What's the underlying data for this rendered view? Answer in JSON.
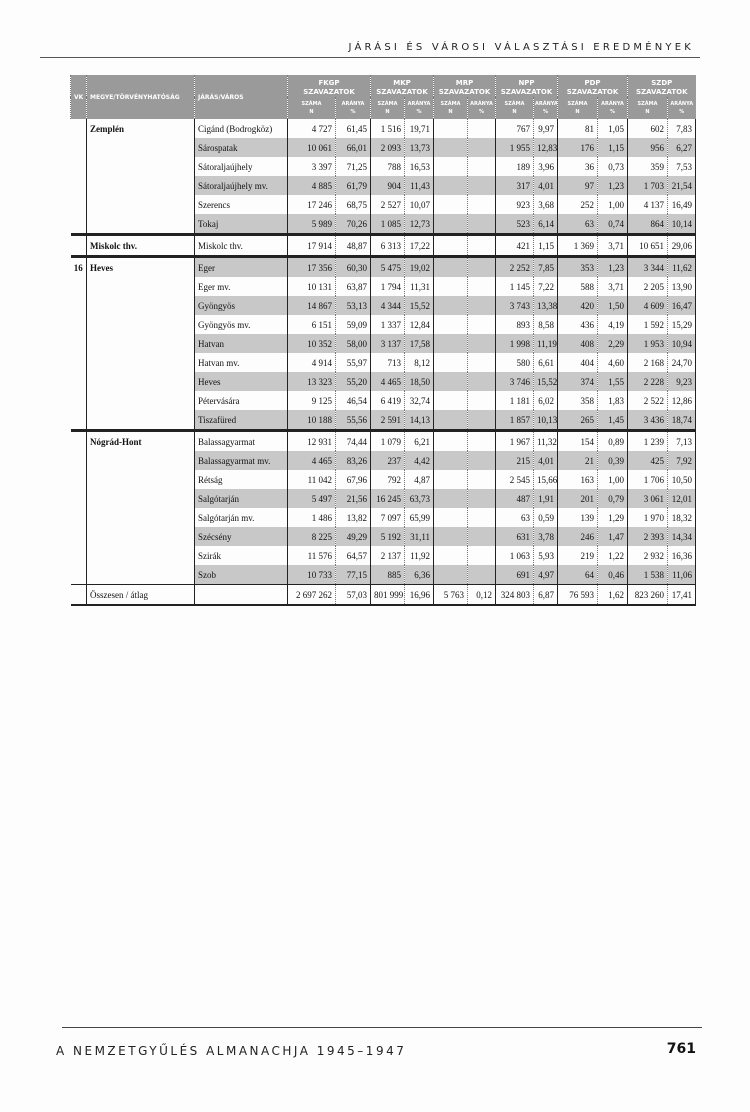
{
  "running_head": "JÁRÁSI ÉS VÁROSI VÁLASZTÁSI EREDMÉNYEK",
  "footer": {
    "title": "A NEMZETGYŰLÉS ALMANACHJA 1945–1947",
    "page_number": "761"
  },
  "table": {
    "headers": {
      "vk": "VK",
      "megye": "MEGYE/TÖRVÉNYHATÓSÁG",
      "jaras": "JÁRÁS/VÁROS",
      "parties": [
        "FKGP",
        "MKP",
        "MRP",
        "NPP",
        "PDP",
        "SZDP"
      ],
      "votes": "SZAVAZATOK",
      "n_label": "SZÁMA",
      "n_unit": "N",
      "pct_label": "ARÁNYA",
      "pct_unit": "%"
    },
    "rows": [
      {
        "vk": "",
        "megye": "Zemplén",
        "jaras": "Cigánd (Bodrogköz)",
        "shaded": false,
        "v": [
          "4 727",
          "61,45",
          "1 516",
          "19,71",
          "",
          "",
          "767",
          "9,97",
          "81",
          "1,05",
          "602",
          "7,83"
        ]
      },
      {
        "vk": "",
        "megye": "",
        "jaras": "Sárospatak",
        "shaded": true,
        "v": [
          "10 061",
          "66,01",
          "2 093",
          "13,73",
          "",
          "",
          "1 955",
          "12,83",
          "176",
          "1,15",
          "956",
          "6,27"
        ]
      },
      {
        "vk": "",
        "megye": "",
        "jaras": "Sátoraljaújhely",
        "shaded": false,
        "v": [
          "3 397",
          "71,25",
          "788",
          "16,53",
          "",
          "",
          "189",
          "3,96",
          "36",
          "0,73",
          "359",
          "7,53"
        ]
      },
      {
        "vk": "",
        "megye": "",
        "jaras": "Sátoraljaújhely mv.",
        "shaded": true,
        "v": [
          "4 885",
          "61,79",
          "904",
          "11,43",
          "",
          "",
          "317",
          "4,01",
          "97",
          "1,23",
          "1 703",
          "21,54"
        ]
      },
      {
        "vk": "",
        "megye": "",
        "jaras": "Szerencs",
        "shaded": false,
        "v": [
          "17 246",
          "68,75",
          "2 527",
          "10,07",
          "",
          "",
          "923",
          "3,68",
          "252",
          "1,00",
          "4 137",
          "16,49"
        ]
      },
      {
        "vk": "",
        "megye": "",
        "jaras": "Tokaj",
        "shaded": true,
        "v": [
          "5 989",
          "70,26",
          "1 085",
          "12,73",
          "",
          "",
          "523",
          "6,14",
          "63",
          "0,74",
          "864",
          "10,14"
        ]
      },
      {
        "vk": "",
        "megye": "Miskolc thv.",
        "jaras": "Miskolc thv.",
        "shaded": false,
        "end": true,
        "v": [
          "17 914",
          "48,87",
          "6 313",
          "17,22",
          "",
          "",
          "421",
          "1,15",
          "1 369",
          "3,71",
          "10 651",
          "29,06"
        ]
      },
      {
        "vk": "16",
        "megye": "Heves",
        "jaras": "Eger",
        "shaded": true,
        "v": [
          "17 356",
          "60,30",
          "5 475",
          "19,02",
          "",
          "",
          "2 252",
          "7,85",
          "353",
          "1,23",
          "3 344",
          "11,62"
        ]
      },
      {
        "vk": "",
        "megye": "",
        "jaras": "Eger mv.",
        "shaded": false,
        "v": [
          "10 131",
          "63,87",
          "1 794",
          "11,31",
          "",
          "",
          "1 145",
          "7,22",
          "588",
          "3,71",
          "2 205",
          "13,90"
        ]
      },
      {
        "vk": "",
        "megye": "",
        "jaras": "Gyöngyös",
        "shaded": true,
        "v": [
          "14 867",
          "53,13",
          "4 344",
          "15,52",
          "",
          "",
          "3 743",
          "13,38",
          "420",
          "1,50",
          "4 609",
          "16,47"
        ]
      },
      {
        "vk": "",
        "megye": "",
        "jaras": "Gyöngyös mv.",
        "shaded": false,
        "v": [
          "6 151",
          "59,09",
          "1 337",
          "12,84",
          "",
          "",
          "893",
          "8,58",
          "436",
          "4,19",
          "1 592",
          "15,29"
        ]
      },
      {
        "vk": "",
        "megye": "",
        "jaras": "Hatvan",
        "shaded": true,
        "v": [
          "10 352",
          "58,00",
          "3 137",
          "17,58",
          "",
          "",
          "1 998",
          "11,19",
          "408",
          "2,29",
          "1 953",
          "10,94"
        ]
      },
      {
        "vk": "",
        "megye": "",
        "jaras": "Hatvan mv.",
        "shaded": false,
        "v": [
          "4 914",
          "55,97",
          "713",
          "8,12",
          "",
          "",
          "580",
          "6,61",
          "404",
          "4,60",
          "2 168",
          "24,70"
        ]
      },
      {
        "vk": "",
        "megye": "",
        "jaras": "Heves",
        "shaded": true,
        "v": [
          "13 323",
          "55,20",
          "4 465",
          "18,50",
          "",
          "",
          "3 746",
          "15,52",
          "374",
          "1,55",
          "2 228",
          "9,23"
        ]
      },
      {
        "vk": "",
        "megye": "",
        "jaras": "Pétervására",
        "shaded": false,
        "v": [
          "9 125",
          "46,54",
          "6 419",
          "32,74",
          "",
          "",
          "1 181",
          "6,02",
          "358",
          "1,83",
          "2 522",
          "12,86"
        ]
      },
      {
        "vk": "",
        "megye": "",
        "jaras": "Tiszafüred",
        "shaded": true,
        "v": [
          "10 188",
          "55,56",
          "2 591",
          "14,13",
          "",
          "",
          "1 857",
          "10,13",
          "265",
          "1,45",
          "3 436",
          "18,74"
        ]
      },
      {
        "vk": "",
        "megye": "Nógrád-Hont",
        "jaras": "Balassagyarmat",
        "shaded": false,
        "v": [
          "12 931",
          "74,44",
          "1 079",
          "6,21",
          "",
          "",
          "1 967",
          "11,32",
          "154",
          "0,89",
          "1 239",
          "7,13"
        ]
      },
      {
        "vk": "",
        "megye": "",
        "jaras": "Balassagyarmat mv.",
        "shaded": true,
        "v": [
          "4 465",
          "83,26",
          "237",
          "4,42",
          "",
          "",
          "215",
          "4,01",
          "21",
          "0,39",
          "425",
          "7,92"
        ]
      },
      {
        "vk": "",
        "megye": "",
        "jaras": "Rétság",
        "shaded": false,
        "v": [
          "11 042",
          "67,96",
          "792",
          "4,87",
          "",
          "",
          "2 545",
          "15,66",
          "163",
          "1,00",
          "1 706",
          "10,50"
        ]
      },
      {
        "vk": "",
        "megye": "",
        "jaras": "Salgótarján",
        "shaded": true,
        "v": [
          "5 497",
          "21,56",
          "16 245",
          "63,73",
          "",
          "",
          "487",
          "1,91",
          "201",
          "0,79",
          "3 061",
          "12,01"
        ]
      },
      {
        "vk": "",
        "megye": "",
        "jaras": "Salgótarján mv.",
        "shaded": false,
        "v": [
          "1 486",
          "13,82",
          "7 097",
          "65,99",
          "",
          "",
          "63",
          "0,59",
          "139",
          "1,29",
          "1 970",
          "18,32"
        ]
      },
      {
        "vk": "",
        "megye": "",
        "jaras": "Szécsény",
        "shaded": true,
        "v": [
          "8 225",
          "49,29",
          "5 192",
          "31,11",
          "",
          "",
          "631",
          "3,78",
          "246",
          "1,47",
          "2 393",
          "14,34"
        ]
      },
      {
        "vk": "",
        "megye": "",
        "jaras": "Szirák",
        "shaded": false,
        "v": [
          "11 576",
          "64,57",
          "2 137",
          "11,92",
          "",
          "",
          "1 063",
          "5,93",
          "219",
          "1,22",
          "2 932",
          "16,36"
        ]
      },
      {
        "vk": "",
        "megye": "",
        "jaras": "Szob",
        "shaded": true,
        "v": [
          "10 733",
          "77,15",
          "885",
          "6,36",
          "",
          "",
          "691",
          "4,97",
          "64",
          "0,46",
          "1 538",
          "11,06"
        ]
      }
    ],
    "total": {
      "label": "Összesen / átlag",
      "v": [
        "2 697 262",
        "57,03",
        "801 999",
        "16,96",
        "5 763",
        "0,12",
        "324 803",
        "6,87",
        "76 593",
        "1,62",
        "823 260",
        "17,41"
      ]
    }
  }
}
